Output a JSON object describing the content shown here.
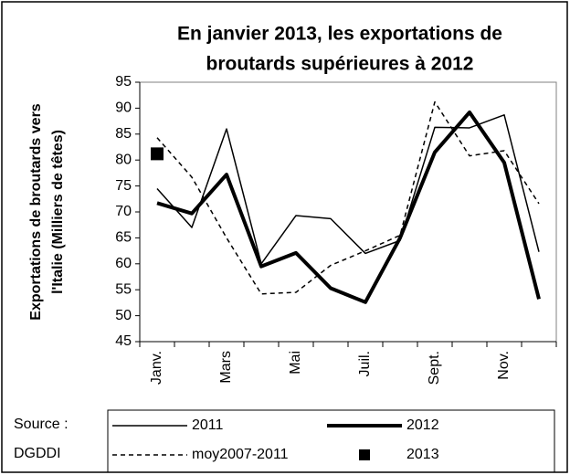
{
  "chart_data": {
    "type": "line",
    "title": [
      "En janvier 2013, les exportations de",
      "broutards supérieures à 2012"
    ],
    "y_label": [
      "Exportations de broutards vers",
      "l'Italie (Milliers de têtes)"
    ],
    "categories": [
      "Janv.",
      null,
      "Mars",
      null,
      "Mai",
      null,
      "Juil.",
      null,
      "Sept.",
      null,
      "Nov.",
      null
    ],
    "series": [
      {
        "name": "2011",
        "color": "#000000",
        "width": 1.5,
        "dash": false,
        "values": [
          74.5,
          67,
          86,
          60,
          69.3,
          68.7,
          62,
          64.5,
          86.3,
          86.2,
          88.7,
          62.3
        ]
      },
      {
        "name": "2012",
        "color": "#000000",
        "width": 4,
        "dash": false,
        "values": [
          71.7,
          69.7,
          77.2,
          59.5,
          62.1,
          55.3,
          52.6,
          65,
          81.5,
          89.2,
          79.5,
          53.2
        ]
      },
      {
        "name": "moy2007-2011",
        "color": "#000000",
        "width": 1.5,
        "dash": true,
        "values": [
          84.3,
          76.7,
          65,
          54.2,
          54.5,
          59.7,
          62.5,
          65.5,
          91.2,
          80.8,
          81.8,
          71.6
        ]
      },
      {
        "name": "2013",
        "color": "#000000",
        "marker": "square",
        "values": [
          81.2,
          null,
          null,
          null,
          null,
          null,
          null,
          null,
          null,
          null,
          null,
          null
        ]
      }
    ],
    "ylim": [
      45,
      95
    ],
    "yticks": [
      45,
      50,
      55,
      60,
      65,
      70,
      75,
      80,
      85,
      90,
      95
    ],
    "source": [
      "Source :",
      "DGDDI"
    ]
  }
}
